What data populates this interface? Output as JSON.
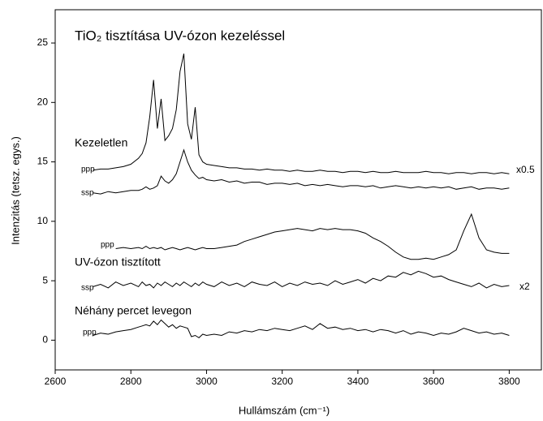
{
  "chart_data": {
    "type": "line",
    "title": "TiO₂ tisztítása UV-ózon kezeléssel",
    "x_label": "Hullámszám (cm⁻¹)",
    "y_label": "Intenzitás (tetsz. egys.)",
    "xlim": [
      2600,
      3885
    ],
    "ylim": [
      -2.5,
      27.8
    ],
    "xticks": [
      2600,
      2800,
      3000,
      3200,
      3400,
      3600,
      3800
    ],
    "yticks": [
      0,
      5,
      10,
      15,
      20,
      25
    ],
    "annotations": [
      "Kezeletlen",
      "x0.5",
      "UV-ózon tisztított",
      "x2",
      "Néhány percet levegon"
    ],
    "x": [
      2700,
      2720,
      2740,
      2760,
      2780,
      2800,
      2820,
      2830,
      2840,
      2850,
      2860,
      2870,
      2880,
      2890,
      2900,
      2910,
      2920,
      2930,
      2940,
      2950,
      2960,
      2970,
      2980,
      2990,
      3000,
      3020,
      3040,
      3060,
      3080,
      3100,
      3120,
      3140,
      3160,
      3180,
      3200,
      3220,
      3240,
      3260,
      3280,
      3300,
      3320,
      3340,
      3360,
      3380,
      3400,
      3420,
      3440,
      3460,
      3480,
      3500,
      3520,
      3540,
      3560,
      3580,
      3600,
      3620,
      3640,
      3660,
      3680,
      3700,
      3720,
      3740,
      3760,
      3780,
      3800
    ],
    "series": [
      {
        "name": "ppp",
        "color": "#000000",
        "values": [
          14.3,
          14.4,
          14.4,
          14.5,
          14.6,
          14.8,
          15.3,
          15.7,
          16.6,
          18.8,
          21.9,
          17.8,
          20.3,
          16.8,
          17.2,
          17.8,
          19.4,
          22.6,
          24.1,
          18.2,
          16.9,
          19.6,
          15.6,
          15.0,
          14.8,
          14.7,
          14.6,
          14.5,
          14.5,
          14.4,
          14.4,
          14.3,
          14.4,
          14.3,
          14.3,
          14.2,
          14.3,
          14.2,
          14.2,
          14.3,
          14.2,
          14.2,
          14.1,
          14.2,
          14.2,
          14.1,
          14.2,
          14.1,
          14.1,
          14.2,
          14.1,
          14.1,
          14.1,
          14.2,
          14.1,
          14.1,
          14.0,
          14.1,
          14.1,
          14.0,
          14.1,
          14.1,
          14.0,
          14.1,
          14.0
        ]
      },
      {
        "name": "ssp",
        "color": "#000000",
        "values": [
          12.4,
          12.3,
          12.5,
          12.4,
          12.5,
          12.6,
          12.6,
          12.7,
          12.9,
          12.7,
          12.8,
          13.0,
          13.8,
          13.4,
          13.2,
          13.5,
          14.0,
          15.0,
          16.0,
          15.0,
          14.3,
          13.9,
          13.6,
          13.7,
          13.5,
          13.4,
          13.5,
          13.3,
          13.4,
          13.2,
          13.3,
          13.3,
          13.1,
          13.2,
          13.2,
          13.1,
          13.2,
          13.0,
          13.1,
          13.0,
          13.1,
          13.0,
          12.9,
          13.0,
          13.0,
          12.9,
          13.0,
          12.8,
          12.9,
          13.0,
          12.9,
          12.8,
          12.9,
          12.8,
          12.9,
          12.8,
          12.9,
          12.7,
          12.8,
          12.9,
          12.7,
          12.8,
          12.8,
          12.7,
          12.8
        ]
      },
      {
        "name": "ppp",
        "color": "#000000",
        "values": [
          null,
          null,
          null,
          7.7,
          7.8,
          7.7,
          7.8,
          7.7,
          7.9,
          7.7,
          7.8,
          7.7,
          7.8,
          7.6,
          7.7,
          7.8,
          7.7,
          7.6,
          7.7,
          7.8,
          7.7,
          7.6,
          7.7,
          7.8,
          7.7,
          7.7,
          7.8,
          7.9,
          8.0,
          8.3,
          8.5,
          8.7,
          8.9,
          9.1,
          9.2,
          9.3,
          9.4,
          9.3,
          9.2,
          9.4,
          9.3,
          9.4,
          9.3,
          9.3,
          9.2,
          9.0,
          8.6,
          8.3,
          7.9,
          7.4,
          7.0,
          6.8,
          6.8,
          6.9,
          6.8,
          7.0,
          7.2,
          7.6,
          9.2,
          10.6,
          8.6,
          7.6,
          7.4,
          7.3,
          7.3
        ]
      },
      {
        "name": "ssp",
        "color": "#000000",
        "values": [
          4.5,
          4.7,
          4.4,
          4.9,
          4.6,
          4.8,
          4.5,
          4.9,
          4.6,
          4.7,
          4.4,
          4.8,
          4.6,
          4.9,
          4.7,
          4.5,
          4.8,
          4.6,
          4.9,
          4.7,
          4.5,
          4.8,
          4.6,
          4.9,
          4.7,
          4.5,
          4.9,
          4.6,
          4.8,
          4.5,
          4.9,
          4.7,
          4.6,
          4.9,
          4.5,
          4.8,
          4.6,
          4.9,
          4.7,
          4.8,
          4.6,
          5.0,
          4.7,
          4.9,
          5.1,
          4.8,
          5.2,
          5.0,
          5.4,
          5.3,
          5.7,
          5.5,
          5.8,
          5.6,
          5.3,
          5.4,
          5.1,
          4.9,
          4.7,
          4.5,
          4.8,
          4.4,
          4.7,
          4.5,
          4.6
        ]
      },
      {
        "name": "ppp",
        "color": "#000000",
        "values": [
          0.4,
          0.6,
          0.5,
          0.7,
          0.8,
          0.9,
          1.1,
          1.2,
          1.3,
          1.2,
          1.6,
          1.3,
          1.7,
          1.4,
          1.1,
          1.3,
          1.0,
          1.2,
          1.1,
          1.0,
          0.3,
          0.4,
          0.2,
          0.5,
          0.4,
          0.5,
          0.4,
          0.7,
          0.6,
          0.8,
          0.7,
          0.9,
          0.8,
          1.0,
          0.9,
          0.8,
          1.0,
          1.2,
          0.9,
          1.4,
          1.0,
          1.1,
          0.9,
          1.0,
          0.8,
          0.9,
          0.7,
          0.9,
          0.8,
          0.6,
          0.8,
          0.5,
          0.7,
          0.6,
          0.4,
          0.6,
          0.5,
          0.7,
          1.0,
          0.8,
          0.6,
          0.7,
          0.5,
          0.6,
          0.4
        ]
      }
    ]
  }
}
